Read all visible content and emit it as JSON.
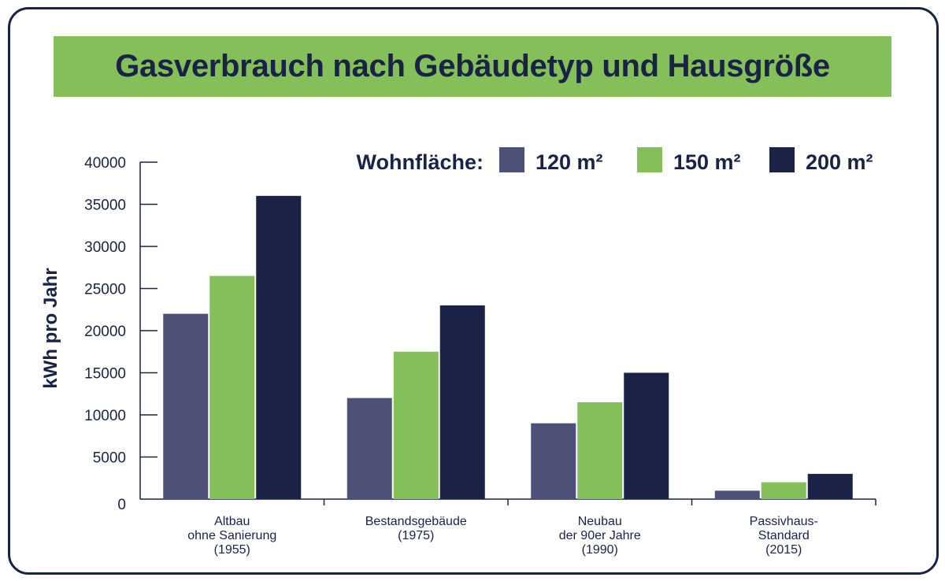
{
  "chart_data": {
    "type": "bar",
    "title": "Gasverbrauch nach Gebäudetyp und Hausgröße",
    "ylabel": "kWh pro Jahr",
    "xlabel": "",
    "ylim": [
      0,
      40000
    ],
    "yticks": [
      0,
      5000,
      10000,
      15000,
      20000,
      25000,
      30000,
      35000,
      40000
    ],
    "legend_title": "Wohnfläche:",
    "legend_position": "top-right",
    "grid": false,
    "categories": [
      [
        "Altbau",
        "ohne Sanierung",
        "(1955)"
      ],
      [
        "Bestandsgebäude",
        "(1975)"
      ],
      [
        "Neubau",
        "der 90er Jahre",
        "(1990)"
      ],
      [
        "Passivhaus-",
        "Standard",
        "(2015)"
      ]
    ],
    "series": [
      {
        "name": "120 m²",
        "color": "#4d5178",
        "values": [
          22000,
          12000,
          9000,
          1000
        ]
      },
      {
        "name": "150 m²",
        "color": "#84bf5a",
        "values": [
          26500,
          17500,
          11500,
          2000
        ]
      },
      {
        "name": "200 m²",
        "color": "#1a2245",
        "values": [
          36000,
          23000,
          15000,
          3000
        ]
      }
    ]
  }
}
